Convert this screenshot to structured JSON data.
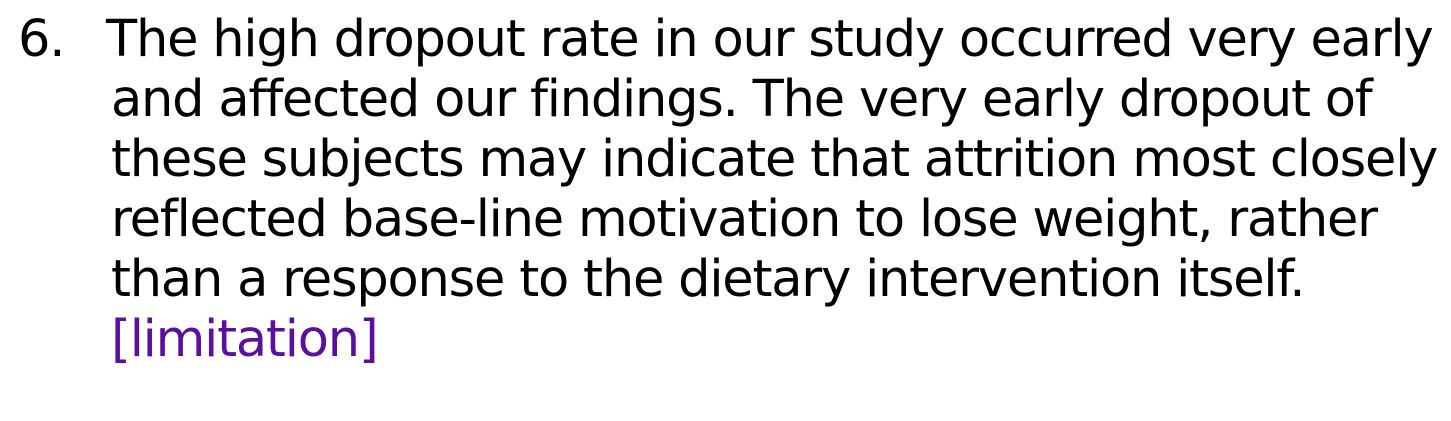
{
  "list_item": {
    "number": "6.",
    "lines": [
      "The high dropout rate in our study occurred very early",
      "and affected our findings. The very early dropout of",
      "these subjects may indicate that attrition most closely",
      "reflected base-line motivation to lose weight, rather",
      "than a response to the dietary intervention itself."
    ],
    "tag": "[limitation]",
    "tag_color": "#5a0f9e"
  }
}
